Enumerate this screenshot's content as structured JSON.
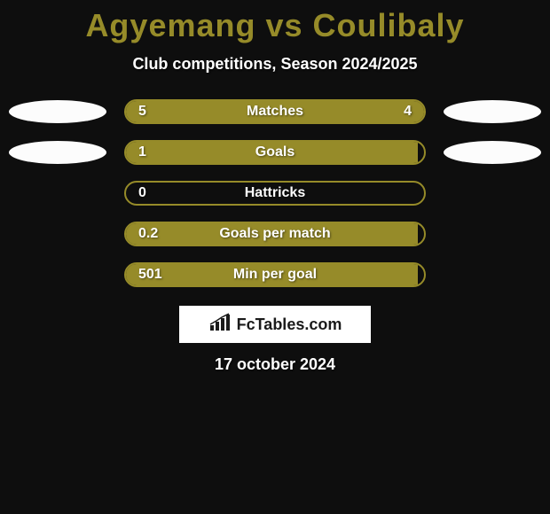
{
  "title": "Agyemang vs Coulibaly",
  "subtitle": "Club competitions, Season 2024/2025",
  "date": "17 october 2024",
  "logo_text": "FcTables.com",
  "colors": {
    "background": "#0e0e0e",
    "accent": "#968b29",
    "oval": "#fcfcfc",
    "text": "#ffffff",
    "logo_bg": "#ffffff",
    "logo_text": "#1a1a1a"
  },
  "stats": [
    {
      "label": "Matches",
      "left_value": "5",
      "right_value": "4",
      "left_fill_pct": 55,
      "right_fill_pct": 45,
      "show_left_oval": true,
      "show_right_oval": true,
      "show_right_value": true
    },
    {
      "label": "Goals",
      "left_value": "1",
      "right_value": "",
      "left_fill_pct": 98,
      "right_fill_pct": 0,
      "show_left_oval": true,
      "show_right_oval": true,
      "show_right_value": false
    },
    {
      "label": "Hattricks",
      "left_value": "0",
      "right_value": "",
      "left_fill_pct": 0,
      "right_fill_pct": 0,
      "show_left_oval": false,
      "show_right_oval": false,
      "show_right_value": false
    },
    {
      "label": "Goals per match",
      "left_value": "0.2",
      "right_value": "",
      "left_fill_pct": 98,
      "right_fill_pct": 0,
      "show_left_oval": false,
      "show_right_oval": false,
      "show_right_value": false
    },
    {
      "label": "Min per goal",
      "left_value": "501",
      "right_value": "",
      "left_fill_pct": 98,
      "right_fill_pct": 0,
      "show_left_oval": false,
      "show_right_oval": false,
      "show_right_value": false
    }
  ]
}
